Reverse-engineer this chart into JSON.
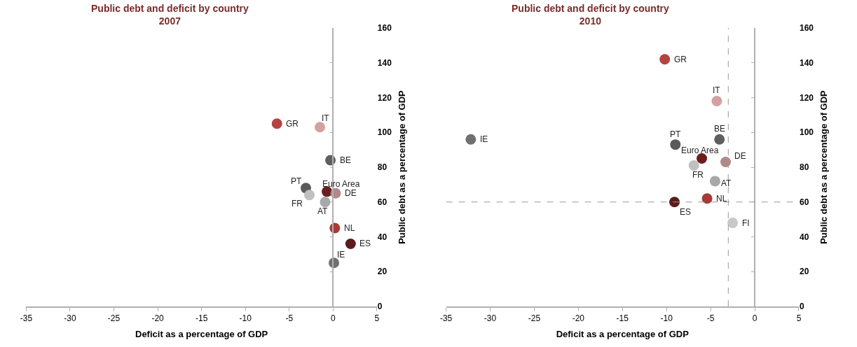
{
  "chart_data": [
    {
      "type": "scatter",
      "title": "Public debt and deficit by country",
      "subtitle": "2007",
      "xlabel": "Deficit as a percentage of GDP",
      "ylabel": "Public debt as a percentage of GDP",
      "xlim": [
        -35,
        5
      ],
      "xticks": [
        -35,
        -30,
        -25,
        -20,
        -15,
        -10,
        -5,
        0,
        5
      ],
      "ylim": [
        0,
        160
      ],
      "yticks": [
        0,
        20,
        40,
        60,
        80,
        100,
        120,
        140,
        160
      ],
      "marker": "circle",
      "series": [
        {
          "name": "GR",
          "color": "#b5433f",
          "x": [
            -6.4
          ],
          "values": [
            105
          ]
        },
        {
          "name": "IT",
          "color": "#d4a0a0",
          "x": [
            -1.5
          ],
          "values": [
            103
          ]
        },
        {
          "name": "BE",
          "color": "#5f5f5f",
          "x": [
            -0.3
          ],
          "values": [
            84
          ]
        },
        {
          "name": "PT",
          "color": "#5a5a5a",
          "x": [
            -3.1
          ],
          "values": [
            68
          ]
        },
        {
          "name": "FR",
          "color": "#c0c0c0",
          "x": [
            -2.7
          ],
          "values": [
            64
          ]
        },
        {
          "name": "Euro Area",
          "color": "#6b1e1e",
          "x": [
            -0.7
          ],
          "values": [
            66
          ]
        },
        {
          "name": "DE",
          "color": "#b08a88",
          "x": [
            0.3
          ],
          "values": [
            65
          ]
        },
        {
          "name": "AT",
          "color": "#a8a8a8",
          "x": [
            -0.9
          ],
          "values": [
            60
          ]
        },
        {
          "name": "NL",
          "color": "#a83a36",
          "x": [
            0.2
          ],
          "values": [
            45
          ]
        },
        {
          "name": "ES",
          "color": "#5c1c1c",
          "x": [
            2.0
          ],
          "values": [
            36
          ]
        },
        {
          "name": "IE",
          "color": "#707070",
          "x": [
            0.1
          ],
          "values": [
            25
          ]
        }
      ]
    },
    {
      "type": "scatter",
      "title": "Public debt and deficit by country",
      "subtitle": "2010",
      "xlabel": "Deficit as a percentage of GDP",
      "ylabel": "Public debt as a percentage of GDP",
      "xlim": [
        -35,
        5
      ],
      "xticks": [
        -35,
        -30,
        -25,
        -20,
        -15,
        -10,
        -5,
        0,
        5
      ],
      "ylim": [
        0,
        160
      ],
      "yticks": [
        0,
        20,
        40,
        60,
        80,
        100,
        120,
        140,
        160
      ],
      "marker": "circle",
      "ref_lines": [
        {
          "axis": "x",
          "value": -3,
          "color": "#999999",
          "line_style": "dashed"
        },
        {
          "axis": "y",
          "value": 60,
          "color": "#999999",
          "line_style": "dashed"
        }
      ],
      "series": [
        {
          "name": "GR",
          "color": "#b5433f",
          "x": [
            -10.2
          ],
          "values": [
            142
          ]
        },
        {
          "name": "IT",
          "color": "#d4a0a0",
          "x": [
            -4.3
          ],
          "values": [
            118
          ]
        },
        {
          "name": "IE",
          "color": "#707070",
          "x": [
            -32.2
          ],
          "values": [
            96
          ]
        },
        {
          "name": "BE",
          "color": "#5f5f5f",
          "x": [
            -4.0
          ],
          "values": [
            96
          ]
        },
        {
          "name": "PT",
          "color": "#5a5a5a",
          "x": [
            -9.0
          ],
          "values": [
            93
          ]
        },
        {
          "name": "Euro Area",
          "color": "#6b1e1e",
          "x": [
            -6.0
          ],
          "values": [
            85
          ]
        },
        {
          "name": "DE",
          "color": "#b08a88",
          "x": [
            -3.3
          ],
          "values": [
            83
          ]
        },
        {
          "name": "FR",
          "color": "#c0c0c0",
          "x": [
            -6.9
          ],
          "values": [
            81
          ]
        },
        {
          "name": "AT",
          "color": "#a8a8a8",
          "x": [
            -4.5
          ],
          "values": [
            72
          ]
        },
        {
          "name": "NL",
          "color": "#a83a36",
          "x": [
            -5.4
          ],
          "values": [
            62
          ]
        },
        {
          "name": "ES",
          "color": "#5c1c1c",
          "x": [
            -9.1
          ],
          "values": [
            60
          ]
        },
        {
          "name": "FI",
          "color": "#c8c8c8",
          "x": [
            -2.5
          ],
          "values": [
            48
          ]
        }
      ]
    }
  ]
}
